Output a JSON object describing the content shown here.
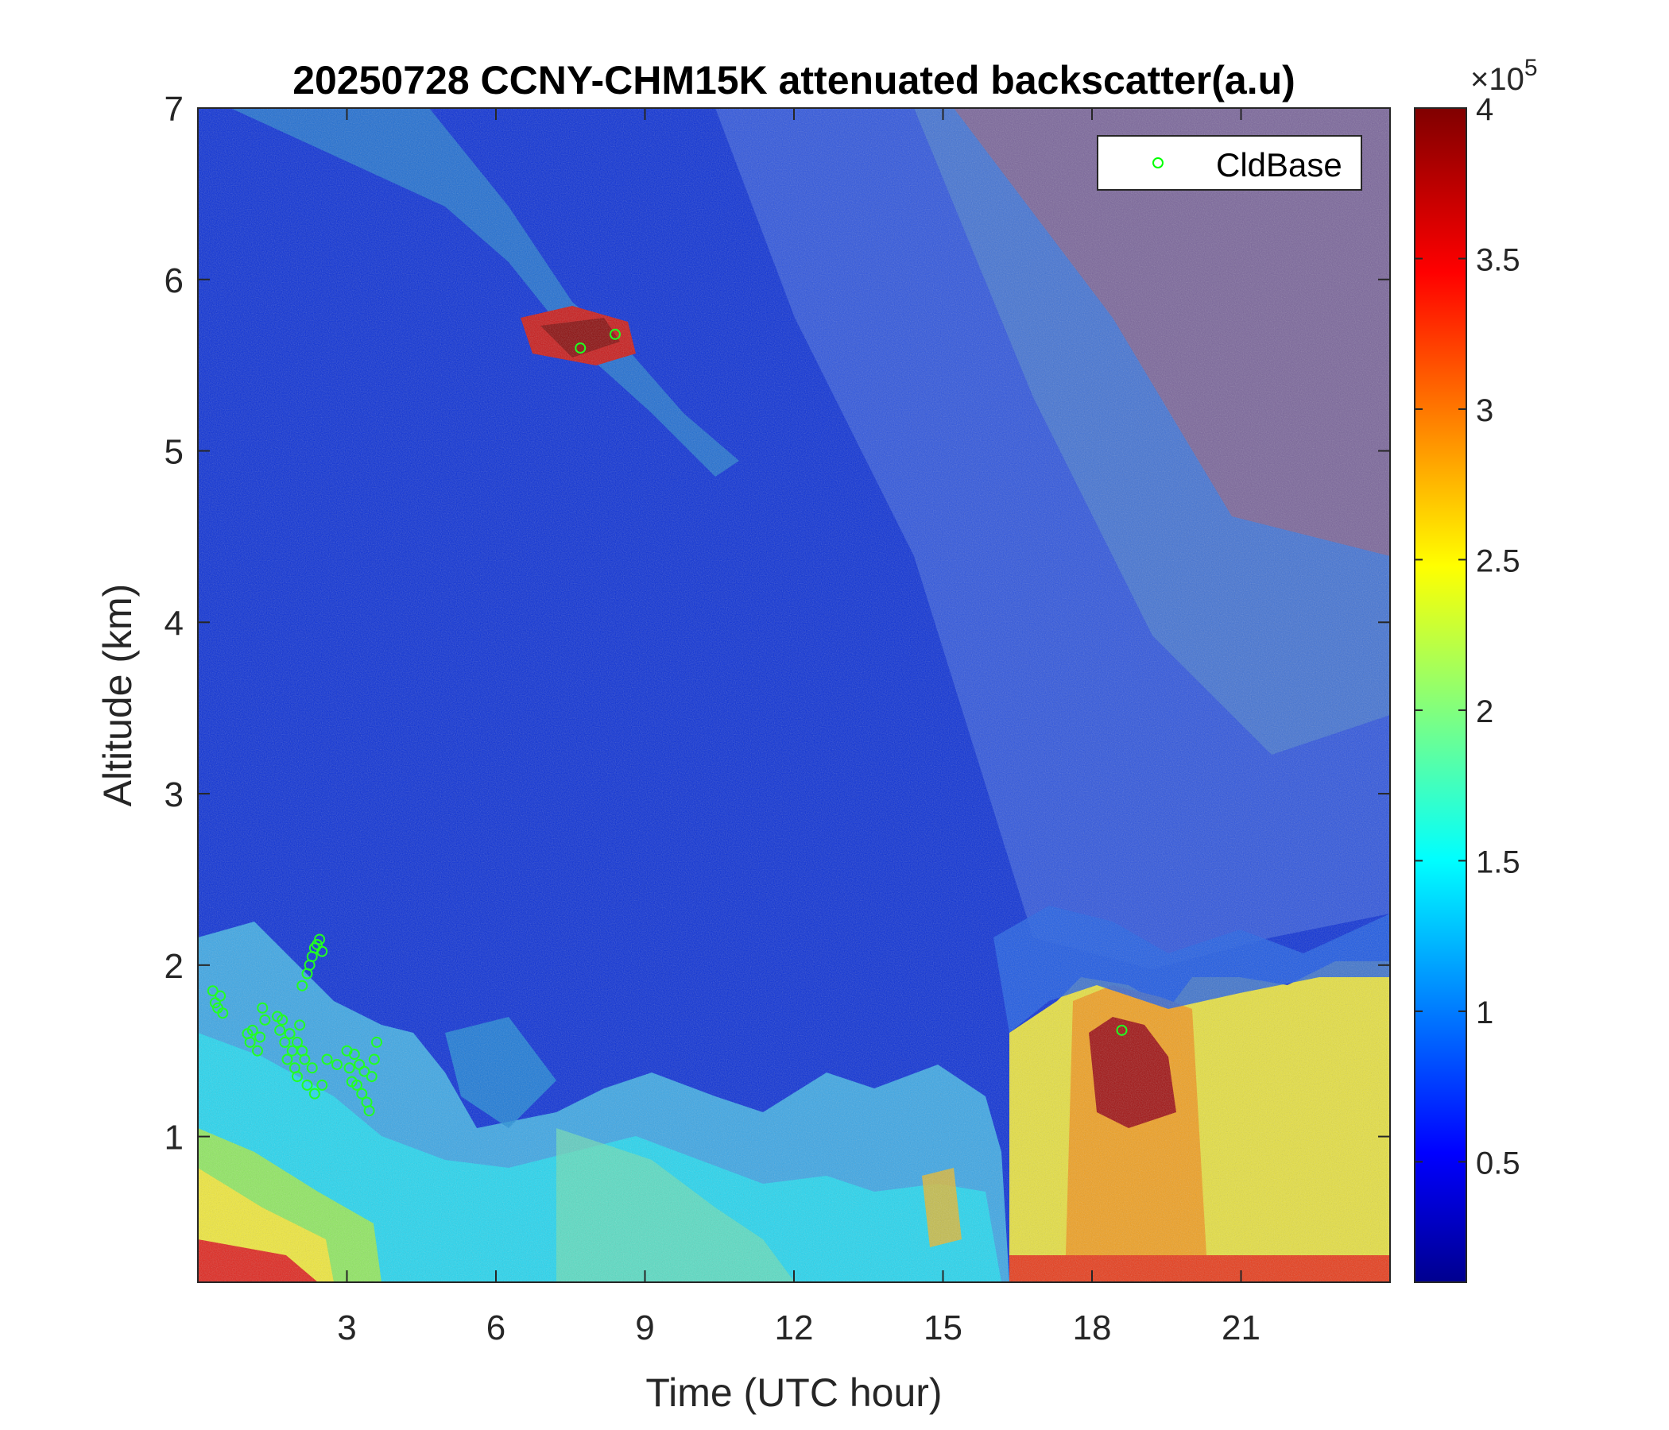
{
  "chart_data": {
    "type": "heatmap",
    "title": "20250728 CCNY-CHM15K attenuated backscatter(a.u)",
    "xlabel": "Time (UTC hour)",
    "ylabel": "Altitude (km)",
    "xlim": [
      0,
      24
    ],
    "ylim": [
      0.15,
      7
    ],
    "xticks": [
      3,
      6,
      9,
      12,
      15,
      18,
      21
    ],
    "yticks": [
      1,
      2,
      3,
      4,
      5,
      6,
      7
    ],
    "colorbar": {
      "colormap": "jet",
      "clim": [
        0.1,
        4
      ],
      "ticks": [
        "0.5",
        "1",
        "1.5",
        "2",
        "2.5",
        "3",
        "3.5",
        "4"
      ],
      "tick_values": [
        0.5,
        1,
        1.5,
        2,
        2.5,
        3,
        3.5,
        4
      ],
      "multiplier_base": "×10",
      "multiplier_exp": "5"
    },
    "legend": {
      "placement": "top-right",
      "entries": [
        {
          "name": "CldBase",
          "marker": "circle",
          "color": "#00ff00"
        }
      ]
    },
    "series": [
      {
        "name": "CldBase",
        "type": "scatter",
        "points": [
          [
            0.3,
            1.85
          ],
          [
            0.35,
            1.78
          ],
          [
            0.4,
            1.75
          ],
          [
            0.45,
            1.82
          ],
          [
            0.5,
            1.72
          ],
          [
            1.0,
            1.6
          ],
          [
            1.05,
            1.55
          ],
          [
            1.1,
            1.62
          ],
          [
            1.2,
            1.5
          ],
          [
            1.25,
            1.58
          ],
          [
            1.3,
            1.75
          ],
          [
            1.35,
            1.68
          ],
          [
            1.6,
            1.7
          ],
          [
            1.65,
            1.62
          ],
          [
            1.7,
            1.68
          ],
          [
            1.75,
            1.55
          ],
          [
            1.8,
            1.45
          ],
          [
            1.85,
            1.6
          ],
          [
            1.9,
            1.5
          ],
          [
            1.95,
            1.4
          ],
          [
            2.0,
            1.35
          ],
          [
            2.0,
            1.55
          ],
          [
            2.05,
            1.65
          ],
          [
            2.1,
            1.5
          ],
          [
            2.1,
            1.88
          ],
          [
            2.15,
            1.45
          ],
          [
            2.2,
            1.3
          ],
          [
            2.2,
            1.95
          ],
          [
            2.25,
            2.0
          ],
          [
            2.3,
            1.4
          ],
          [
            2.3,
            2.05
          ],
          [
            2.35,
            1.25
          ],
          [
            2.35,
            2.1
          ],
          [
            2.4,
            2.12
          ],
          [
            2.45,
            2.15
          ],
          [
            2.5,
            1.3
          ],
          [
            2.5,
            2.08
          ],
          [
            2.6,
            1.45
          ],
          [
            2.8,
            1.42
          ],
          [
            3.0,
            1.5
          ],
          [
            3.05,
            1.4
          ],
          [
            3.1,
            1.32
          ],
          [
            3.15,
            1.48
          ],
          [
            3.2,
            1.3
          ],
          [
            3.25,
            1.42
          ],
          [
            3.3,
            1.25
          ],
          [
            3.35,
            1.38
          ],
          [
            3.4,
            1.2
          ],
          [
            3.45,
            1.15
          ],
          [
            3.5,
            1.35
          ],
          [
            3.55,
            1.45
          ],
          [
            3.6,
            1.55
          ],
          [
            7.7,
            5.6
          ],
          [
            8.4,
            5.68
          ],
          [
            18.6,
            1.62
          ]
        ]
      }
    ]
  }
}
